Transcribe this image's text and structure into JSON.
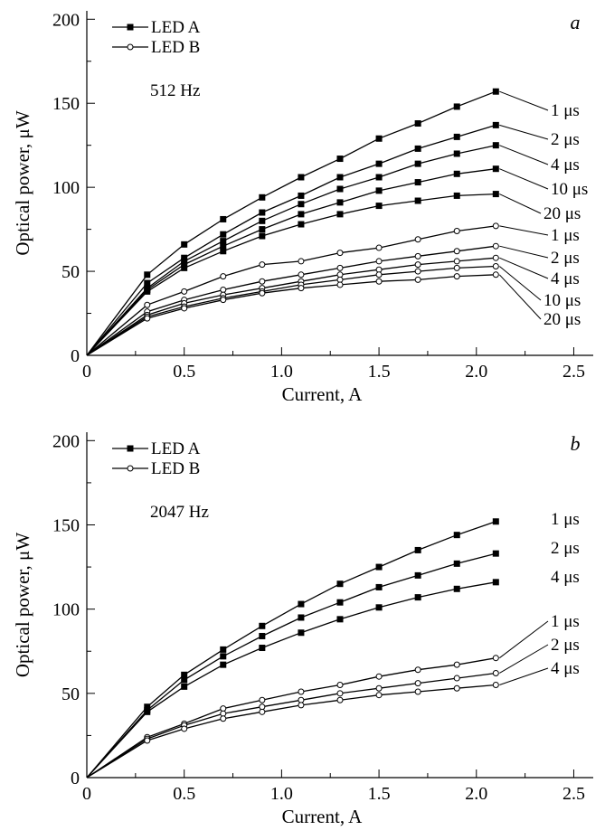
{
  "chart_data": [
    {
      "type": "line",
      "panel_label": "a",
      "annotation": "512 Hz",
      "xlabel": "Current, A",
      "ylabel": "Optical power, μW",
      "xlim": [
        0,
        2.6
      ],
      "ylim": [
        0,
        205
      ],
      "x_ticks": [
        "0",
        "0.5",
        "1.0",
        "1.5",
        "2.0",
        "2.5"
      ],
      "y_ticks": [
        "0",
        "50",
        "100",
        "150",
        "200"
      ],
      "grid": false,
      "legend_placement": "top-left",
      "legend": [
        {
          "label": "LED A",
          "marker": "filled-square"
        },
        {
          "label": "LED B",
          "marker": "open-circle"
        }
      ],
      "x": [
        0,
        0.31,
        0.5,
        0.7,
        0.9,
        1.1,
        1.3,
        1.5,
        1.7,
        1.9,
        2.1
      ],
      "series": [
        {
          "group": "LED A",
          "label": "1 μs",
          "marker": "filled-square",
          "values": [
            0,
            48,
            66,
            81,
            94,
            106,
            117,
            129,
            138,
            148,
            157
          ]
        },
        {
          "group": "LED A",
          "label": "2 μs",
          "marker": "filled-square",
          "values": [
            0,
            43,
            58,
            72,
            85,
            95,
            106,
            114,
            123,
            130,
            137
          ]
        },
        {
          "group": "LED A",
          "label": "4 μs",
          "marker": "filled-square",
          "values": [
            0,
            40,
            56,
            68,
            80,
            90,
            99,
            106,
            114,
            120,
            125
          ]
        },
        {
          "group": "LED A",
          "label": "10 μs",
          "marker": "filled-square",
          "values": [
            0,
            39,
            54,
            65,
            75,
            84,
            91,
            98,
            103,
            108,
            111
          ]
        },
        {
          "group": "LED A",
          "label": "20 μs",
          "marker": "filled-square",
          "values": [
            0,
            38,
            52,
            62,
            71,
            78,
            84,
            89,
            92,
            95,
            96
          ]
        },
        {
          "group": "LED B",
          "label": "1 μs",
          "marker": "open-circle",
          "values": [
            0,
            30,
            38,
            47,
            54,
            56,
            61,
            64,
            69,
            74,
            77
          ]
        },
        {
          "group": "LED B",
          "label": "2 μs",
          "marker": "open-circle",
          "values": [
            0,
            26,
            33,
            39,
            44,
            48,
            52,
            56,
            59,
            62,
            65
          ]
        },
        {
          "group": "LED B",
          "label": "4 μs",
          "marker": "open-circle",
          "values": [
            0,
            24,
            31,
            36,
            40,
            44,
            48,
            51,
            54,
            56,
            58
          ]
        },
        {
          "group": "LED B",
          "label": "10 μs",
          "marker": "open-circle",
          "values": [
            0,
            23,
            29,
            34,
            38,
            42,
            45,
            48,
            50,
            52,
            53
          ]
        },
        {
          "group": "LED B",
          "label": "20 μs",
          "marker": "open-circle",
          "values": [
            0,
            22,
            28,
            33,
            37,
            40,
            42,
            44,
            45,
            47,
            48
          ]
        }
      ]
    },
    {
      "type": "line",
      "panel_label": "b",
      "annotation": "2047 Hz",
      "xlabel": "Current, A",
      "ylabel": "Optical power, μW",
      "xlim": [
        0,
        2.6
      ],
      "ylim": [
        0,
        205
      ],
      "x_ticks": [
        "0",
        "0.5",
        "1.0",
        "1.5",
        "2.0",
        "2.5"
      ],
      "y_ticks": [
        "0",
        "50",
        "100",
        "150",
        "200"
      ],
      "grid": false,
      "legend_placement": "top-left",
      "legend": [
        {
          "label": "LED A",
          "marker": "filled-square"
        },
        {
          "label": "LED B",
          "marker": "open-circle"
        }
      ],
      "x": [
        0,
        0.31,
        0.5,
        0.7,
        0.9,
        1.1,
        1.3,
        1.5,
        1.7,
        1.9,
        2.1
      ],
      "series": [
        {
          "group": "LED A",
          "label": "1 μs",
          "marker": "filled-square",
          "values": [
            0,
            42,
            61,
            76,
            90,
            103,
            115,
            125,
            135,
            144,
            152
          ]
        },
        {
          "group": "LED A",
          "label": "2 μs",
          "marker": "filled-square",
          "values": [
            0,
            40,
            58,
            72,
            84,
            95,
            104,
            113,
            120,
            127,
            133
          ]
        },
        {
          "group": "LED A",
          "label": "4 μs",
          "marker": "filled-square",
          "values": [
            0,
            39,
            54,
            67,
            77,
            86,
            94,
            101,
            107,
            112,
            116
          ]
        },
        {
          "group": "LED B",
          "label": "1 μs",
          "marker": "open-circle",
          "values": [
            0,
            24,
            32,
            41,
            46,
            51,
            55,
            60,
            64,
            67,
            71
          ]
        },
        {
          "group": "LED B",
          "label": "2 μs",
          "marker": "open-circle",
          "values": [
            0,
            23,
            31,
            38,
            42,
            46,
            50,
            53,
            56,
            59,
            62
          ]
        },
        {
          "group": "LED B",
          "label": "4 μs",
          "marker": "open-circle",
          "values": [
            0,
            22,
            29,
            35,
            39,
            43,
            46,
            49,
            51,
            53,
            55
          ]
        }
      ]
    }
  ]
}
